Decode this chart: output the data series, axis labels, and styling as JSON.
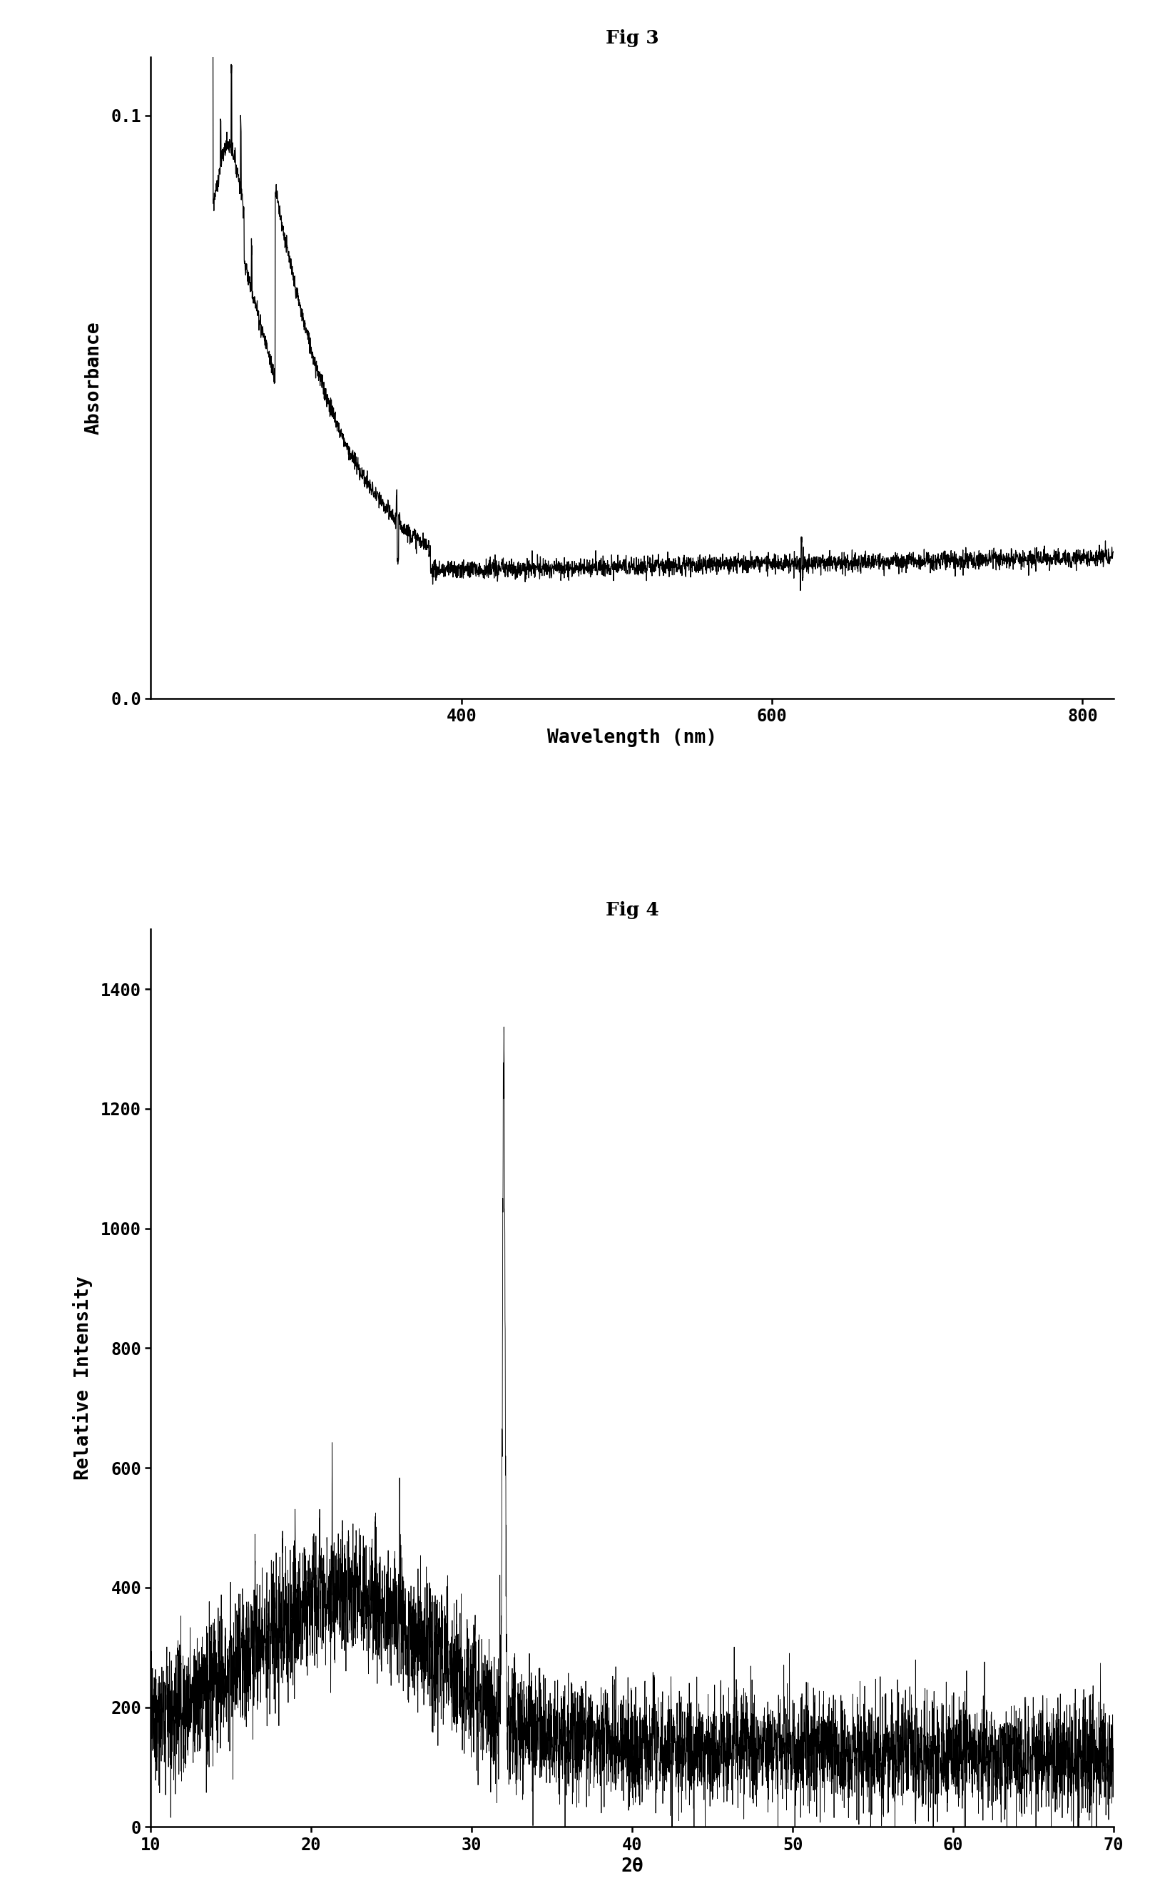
{
  "fig3_title": "Fig 3",
  "fig3_xlabel": "Wavelength (nm)",
  "fig3_ylabel": "Absorbance",
  "fig3_xlim": [
    200,
    820
  ],
  "fig3_ylim": [
    0.0,
    0.11
  ],
  "fig3_xticks": [
    400,
    600,
    800
  ],
  "fig3_yticks": [
    0.0,
    0.1
  ],
  "fig3_ytick_labels": [
    "0.0",
    "0.1"
  ],
  "fig4_title": "Fig 4",
  "fig4_xlabel": "2θ",
  "fig4_ylabel": "Relative Intensity",
  "fig4_xlim": [
    10,
    70
  ],
  "fig4_ylim": [
    0,
    1500
  ],
  "fig4_xticks": [
    10,
    20,
    30,
    40,
    50,
    60,
    70
  ],
  "fig4_yticks": [
    0,
    200,
    400,
    600,
    800,
    1000,
    1200,
    1400
  ],
  "line_color": "#000000",
  "bg_color": "#ffffff"
}
